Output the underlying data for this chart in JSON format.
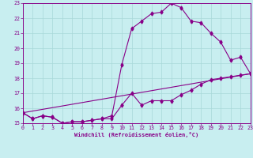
{
  "title": "",
  "xlabel": "Windchill (Refroidissement éolien,°C)",
  "bg_color": "#c8eef0",
  "grid_color": "#a8d8d8",
  "line_color": "#880088",
  "xlim": [
    0,
    23
  ],
  "ylim": [
    15,
    23
  ],
  "xticks": [
    0,
    1,
    2,
    3,
    4,
    5,
    6,
    7,
    8,
    9,
    10,
    11,
    12,
    13,
    14,
    15,
    16,
    17,
    18,
    19,
    20,
    21,
    22,
    23
  ],
  "yticks": [
    15,
    16,
    17,
    18,
    19,
    20,
    21,
    22,
    23
  ],
  "curve1_x": [
    0,
    1,
    2,
    3,
    4,
    5,
    6,
    7,
    8,
    9,
    10,
    11,
    12,
    13,
    14,
    15,
    16,
    17,
    18,
    19,
    20,
    21,
    22,
    23
  ],
  "curve1_y": [
    15.7,
    15.3,
    15.5,
    15.4,
    15.0,
    15.1,
    15.1,
    15.2,
    15.3,
    15.5,
    18.9,
    21.3,
    21.8,
    22.3,
    22.4,
    23.0,
    22.7,
    21.8,
    21.7,
    21.0,
    20.4,
    19.2,
    19.4,
    18.3
  ],
  "curve2_x": [
    0,
    1,
    2,
    3,
    4,
    5,
    6,
    7,
    8,
    9,
    10,
    11,
    12,
    13,
    14,
    15,
    16,
    17,
    18,
    19,
    20,
    21,
    22,
    23
  ],
  "curve2_y": [
    15.7,
    15.3,
    15.5,
    15.4,
    15.0,
    15.1,
    15.1,
    15.2,
    15.3,
    15.3,
    16.2,
    17.0,
    16.2,
    16.5,
    16.5,
    16.5,
    16.9,
    17.2,
    17.6,
    17.9,
    18.0,
    18.1,
    18.2,
    18.3
  ],
  "curve3_x": [
    0,
    23
  ],
  "curve3_y": [
    15.7,
    18.3
  ]
}
